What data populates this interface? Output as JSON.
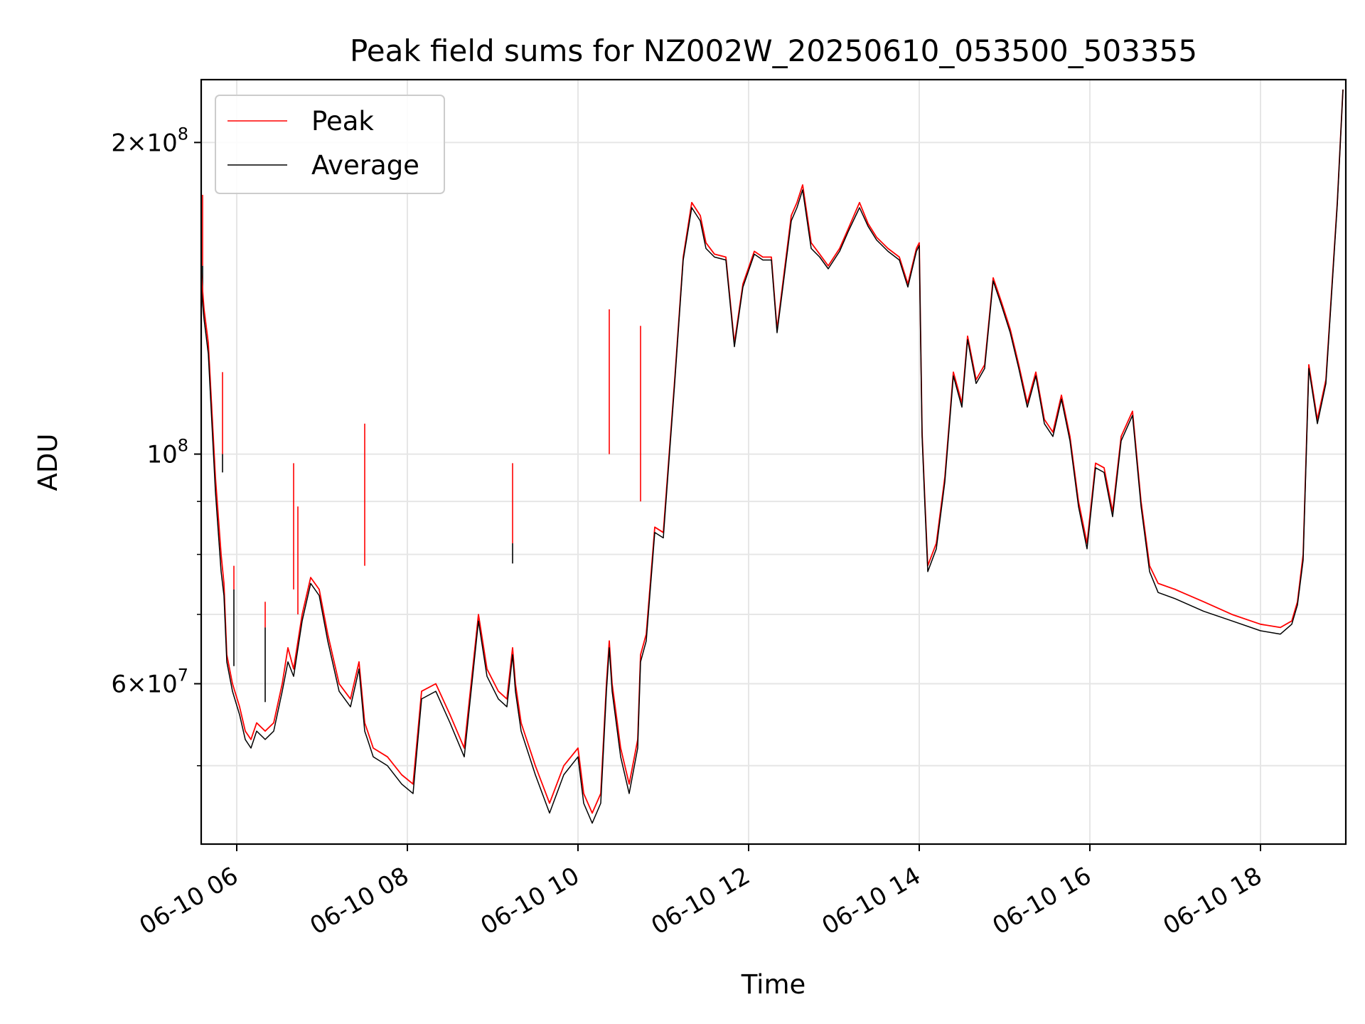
{
  "chart_data": {
    "type": "line",
    "title": "Peak field sums for NZ002W_20250610_053500_503355",
    "xlabel": "Time",
    "ylabel": "ADU",
    "yscale": "log",
    "xlim": [
      "06-10 05:35",
      "06-10 19:00"
    ],
    "ylim": [
      42000000,
      230000000
    ],
    "grid": true,
    "legend_position": "upper-left",
    "x_ticks": [
      {
        "value": "06-10 06:00",
        "label": "06-10 06"
      },
      {
        "value": "06-10 08:00",
        "label": "06-10 08"
      },
      {
        "value": "06-10 10:00",
        "label": "06-10 10"
      },
      {
        "value": "06-10 12:00",
        "label": "06-10 12"
      },
      {
        "value": "06-10 14:00",
        "label": "06-10 14"
      },
      {
        "value": "06-10 16:00",
        "label": "06-10 16"
      },
      {
        "value": "06-10 18:00",
        "label": "06-10 18"
      }
    ],
    "y_ticks": [
      {
        "value": 60000000,
        "base": "6",
        "exp": "7"
      },
      {
        "value": 100000000,
        "base": "",
        "exp": "8"
      },
      {
        "value": 200000000,
        "base": "2",
        "exp": "8"
      }
    ],
    "y_minor_ticks": [
      50000000,
      70000000,
      80000000,
      90000000
    ],
    "series": [
      {
        "name": "Peak",
        "color": "#ff0000",
        "x": [
          "06-10 05:35",
          "06-10 05:37",
          "06-10 05:40",
          "06-10 05:45",
          "06-10 05:49",
          "06-10 05:51",
          "06-10 05:53",
          "06-10 05:57",
          "06-10 06:02",
          "06-10 06:06",
          "06-10 06:10",
          "06-10 06:14",
          "06-10 06:20",
          "06-10 06:26",
          "06-10 06:32",
          "06-10 06:36",
          "06-10 06:40",
          "06-10 06:46",
          "06-10 06:52",
          "06-10 06:58",
          "06-10 07:04",
          "06-10 07:12",
          "06-10 07:20",
          "06-10 07:26",
          "06-10 07:30",
          "06-10 07:32",
          "06-10 07:36",
          "06-10 07:46",
          "06-10 07:56",
          "06-10 08:04",
          "06-10 08:10",
          "06-10 08:20",
          "06-10 08:30",
          "06-10 08:40",
          "06-10 08:50",
          "06-10 08:56",
          "06-10 09:04",
          "06-10 09:10",
          "06-10 09:14",
          "06-10 09:16",
          "06-10 09:20",
          "06-10 09:30",
          "06-10 09:40",
          "06-10 09:50",
          "06-10 10:00",
          "06-10 10:04",
          "06-10 10:10",
          "06-10 10:16",
          "06-10 10:20",
          "06-10 10:22",
          "06-10 10:24",
          "06-10 10:30",
          "06-10 10:36",
          "06-10 10:42",
          "06-10 10:44",
          "06-10 10:48",
          "06-10 10:54",
          "06-10 11:00",
          "06-10 11:08",
          "06-10 11:14",
          "06-10 11:20",
          "06-10 11:26",
          "06-10 11:30",
          "06-10 11:36",
          "06-10 11:44",
          "06-10 11:50",
          "06-10 11:56",
          "06-10 12:04",
          "06-10 12:10",
          "06-10 12:16",
          "06-10 12:20",
          "06-10 12:30",
          "06-10 12:34",
          "06-10 12:38",
          "06-10 12:44",
          "06-10 12:50",
          "06-10 12:56",
          "06-10 13:04",
          "06-10 13:10",
          "06-10 13:18",
          "06-10 13:24",
          "06-10 13:30",
          "06-10 13:38",
          "06-10 13:46",
          "06-10 13:52",
          "06-10 13:58",
          "06-10 14:00",
          "06-10 14:02",
          "06-10 14:04",
          "06-10 14:06",
          "06-10 14:12",
          "06-10 14:18",
          "06-10 14:24",
          "06-10 14:30",
          "06-10 14:34",
          "06-10 14:40",
          "06-10 14:46",
          "06-10 14:52",
          "06-10 14:58",
          "06-10 15:04",
          "06-10 15:10",
          "06-10 15:16",
          "06-10 15:22",
          "06-10 15:28",
          "06-10 15:34",
          "06-10 15:40",
          "06-10 15:46",
          "06-10 15:52",
          "06-10 15:58",
          "06-10 16:04",
          "06-10 16:10",
          "06-10 16:16",
          "06-10 16:22",
          "06-10 16:30",
          "06-10 16:36",
          "06-10 16:42",
          "06-10 16:48",
          "06-10 17:00",
          "06-10 17:20",
          "06-10 17:40",
          "06-10 18:00",
          "06-10 18:14",
          "06-10 18:22",
          "06-10 18:26",
          "06-10 18:30",
          "06-10 18:34",
          "06-10 18:40",
          "06-10 18:46",
          "06-10 18:54",
          "06-10 18:58"
        ],
        "values": [
          150000000,
          138000000,
          128000000,
          95000000,
          80000000,
          75000000,
          64000000,
          60000000,
          57000000,
          54000000,
          53000000,
          55000000,
          54000000,
          55000000,
          60000000,
          65000000,
          62000000,
          70000000,
          76000000,
          74000000,
          67000000,
          60000000,
          58000000,
          63000000,
          55000000,
          54000000,
          52000000,
          51000000,
          49000000,
          48000000,
          59000000,
          60000000,
          56000000,
          52000000,
          70000000,
          62000000,
          59000000,
          58000000,
          65000000,
          60000000,
          55000000,
          50000000,
          46000000,
          50000000,
          52000000,
          47000000,
          45000000,
          47000000,
          60000000,
          66000000,
          60000000,
          52000000,
          48000000,
          53000000,
          64000000,
          67000000,
          85000000,
          84000000,
          118000000,
          155000000,
          175000000,
          170000000,
          160000000,
          156000000,
          155000000,
          128000000,
          146000000,
          157000000,
          155000000,
          155000000,
          132000000,
          170000000,
          175000000,
          182000000,
          160000000,
          156000000,
          152000000,
          158000000,
          165000000,
          175000000,
          167000000,
          162000000,
          158000000,
          155000000,
          146000000,
          158000000,
          160000000,
          105000000,
          90000000,
          78000000,
          82000000,
          95000000,
          120000000,
          112000000,
          130000000,
          118000000,
          122000000,
          148000000,
          140000000,
          132000000,
          122000000,
          112000000,
          120000000,
          108000000,
          105000000,
          114000000,
          104000000,
          90000000,
          82000000,
          98000000,
          97000000,
          88000000,
          104000000,
          110000000,
          90000000,
          78000000,
          75000000,
          74000000,
          72000000,
          70000000,
          68500000,
          68000000,
          69000000,
          72000000,
          80000000,
          122000000,
          108000000,
          118000000,
          175000000,
          225000000
        ]
      },
      {
        "name": "Average",
        "color": "#000000",
        "x": [
          "06-10 05:35",
          "06-10 05:37",
          "06-10 05:40",
          "06-10 05:45",
          "06-10 05:49",
          "06-10 05:51",
          "06-10 05:53",
          "06-10 05:57",
          "06-10 06:02",
          "06-10 06:06",
          "06-10 06:10",
          "06-10 06:14",
          "06-10 06:20",
          "06-10 06:26",
          "06-10 06:32",
          "06-10 06:36",
          "06-10 06:40",
          "06-10 06:46",
          "06-10 06:52",
          "06-10 06:58",
          "06-10 07:04",
          "06-10 07:12",
          "06-10 07:20",
          "06-10 07:26",
          "06-10 07:30",
          "06-10 07:32",
          "06-10 07:36",
          "06-10 07:46",
          "06-10 07:56",
          "06-10 08:04",
          "06-10 08:10",
          "06-10 08:20",
          "06-10 08:30",
          "06-10 08:40",
          "06-10 08:50",
          "06-10 08:56",
          "06-10 09:04",
          "06-10 09:10",
          "06-10 09:14",
          "06-10 09:16",
          "06-10 09:20",
          "06-10 09:30",
          "06-10 09:40",
          "06-10 09:50",
          "06-10 10:00",
          "06-10 10:04",
          "06-10 10:10",
          "06-10 10:16",
          "06-10 10:20",
          "06-10 10:22",
          "06-10 10:24",
          "06-10 10:30",
          "06-10 10:36",
          "06-10 10:42",
          "06-10 10:44",
          "06-10 10:48",
          "06-10 10:54",
          "06-10 11:00",
          "06-10 11:08",
          "06-10 11:14",
          "06-10 11:20",
          "06-10 11:26",
          "06-10 11:30",
          "06-10 11:36",
          "06-10 11:44",
          "06-10 11:50",
          "06-10 11:56",
          "06-10 12:04",
          "06-10 12:10",
          "06-10 12:16",
          "06-10 12:20",
          "06-10 12:30",
          "06-10 12:34",
          "06-10 12:38",
          "06-10 12:44",
          "06-10 12:50",
          "06-10 12:56",
          "06-10 13:04",
          "06-10 13:10",
          "06-10 13:18",
          "06-10 13:24",
          "06-10 13:30",
          "06-10 13:38",
          "06-10 13:46",
          "06-10 13:52",
          "06-10 13:58",
          "06-10 14:00",
          "06-10 14:02",
          "06-10 14:04",
          "06-10 14:06",
          "06-10 14:12",
          "06-10 14:18",
          "06-10 14:24",
          "06-10 14:30",
          "06-10 14:34",
          "06-10 14:40",
          "06-10 14:46",
          "06-10 14:52",
          "06-10 14:58",
          "06-10 15:04",
          "06-10 15:10",
          "06-10 15:16",
          "06-10 15:22",
          "06-10 15:28",
          "06-10 15:34",
          "06-10 15:40",
          "06-10 15:46",
          "06-10 15:52",
          "06-10 15:58",
          "06-10 16:04",
          "06-10 16:10",
          "06-10 16:16",
          "06-10 16:22",
          "06-10 16:30",
          "06-10 16:36",
          "06-10 16:42",
          "06-10 16:48",
          "06-10 17:00",
          "06-10 17:20",
          "06-10 17:40",
          "06-10 18:00",
          "06-10 18:14",
          "06-10 18:22",
          "06-10 18:26",
          "06-10 18:30",
          "06-10 18:34",
          "06-10 18:40",
          "06-10 18:46",
          "06-10 18:54",
          "06-10 18:58"
        ],
        "values": [
          145000000,
          135000000,
          125000000,
          92000000,
          77000000,
          73000000,
          63000000,
          59000000,
          56000000,
          53000000,
          52000000,
          54000000,
          53000000,
          54000000,
          59000000,
          63000000,
          61000000,
          69000000,
          75000000,
          73000000,
          66000000,
          59000000,
          57000000,
          62000000,
          54000000,
          53000000,
          51000000,
          50000000,
          48000000,
          47000000,
          58000000,
          59000000,
          55000000,
          51000000,
          69000000,
          61000000,
          58000000,
          57000000,
          64000000,
          59000000,
          54000000,
          49000000,
          45000000,
          49000000,
          51000000,
          46000000,
          44000000,
          46000000,
          59000000,
          65000000,
          59000000,
          51000000,
          47000000,
          52000000,
          63000000,
          66000000,
          84000000,
          83000000,
          117000000,
          154000000,
          173000000,
          168000000,
          158000000,
          155000000,
          154000000,
          127000000,
          145000000,
          156000000,
          154000000,
          154000000,
          131000000,
          168000000,
          173000000,
          180000000,
          158000000,
          155000000,
          151000000,
          157000000,
          164000000,
          173000000,
          166000000,
          161000000,
          157000000,
          154000000,
          145000000,
          157000000,
          159000000,
          104000000,
          89000000,
          77000000,
          81000000,
          94000000,
          119000000,
          111000000,
          129000000,
          117000000,
          121000000,
          147000000,
          139000000,
          131000000,
          121000000,
          111000000,
          119000000,
          107000000,
          104000000,
          113000000,
          103000000,
          89000000,
          81000000,
          97000000,
          96000000,
          87000000,
          103000000,
          109000000,
          89000000,
          77000000,
          73500000,
          72500000,
          70500000,
          69000000,
          67500000,
          67000000,
          68500000,
          71500000,
          79000000,
          121000000,
          107000000,
          117000000,
          174000000,
          225000000
        ]
      }
    ],
    "spikes": [
      {
        "x": "06-10 05:36",
        "peak": 178000000,
        "average": 152000000
      },
      {
        "x": "06-10 05:50",
        "peak": 120000000,
        "average": 100000000
      },
      {
        "x": "06-10 05:58",
        "peak": 78000000,
        "average": 74000000
      },
      {
        "x": "06-10 06:20",
        "peak": 72000000,
        "average": 68000000
      },
      {
        "x": "06-10 06:40",
        "peak": 98000000,
        "average": 74000000
      },
      {
        "x": "06-10 06:43",
        "peak": 89000000,
        "average": 70000000
      },
      {
        "x": "06-10 07:30",
        "peak": 107000000,
        "average": 78000000
      },
      {
        "x": "06-10 09:14",
        "peak": 98000000,
        "average": 82000000
      },
      {
        "x": "06-10 10:22",
        "peak": 138000000,
        "average": 100000000
      },
      {
        "x": "06-10 10:44",
        "peak": 133000000,
        "average": 90000000
      }
    ]
  }
}
